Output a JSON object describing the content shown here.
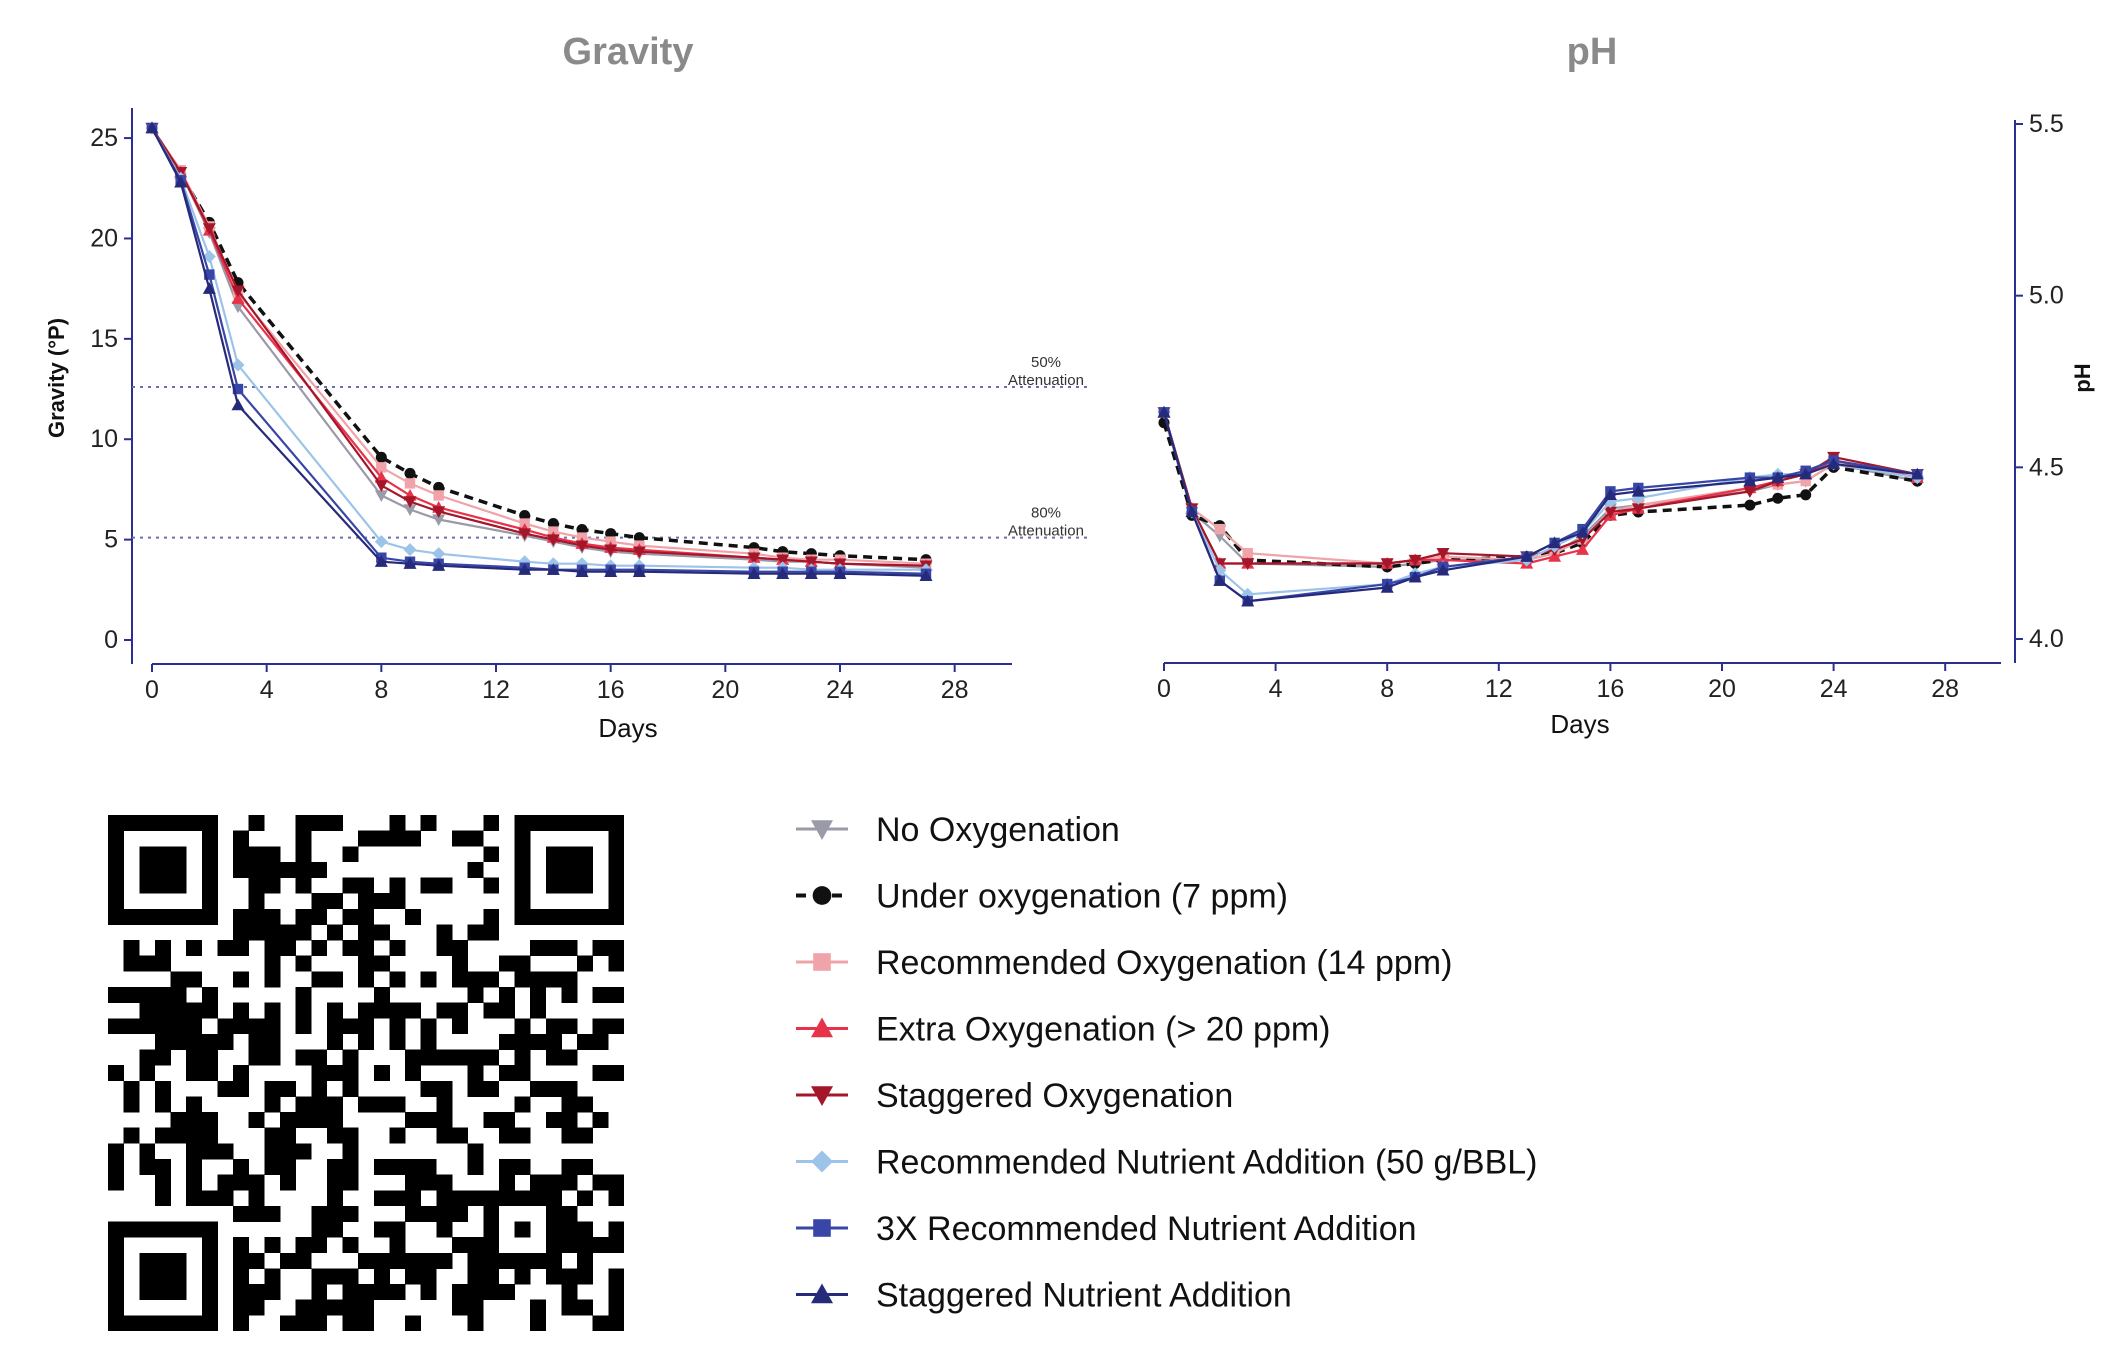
{
  "chart_data": [
    {
      "type": "line",
      "title": "Gravity",
      "xlabel": "Days",
      "ylabel": "Gravity (°P)",
      "xlim": [
        0,
        30
      ],
      "ylim": [
        0,
        26
      ],
      "xticks": [
        "0",
        "4",
        "8",
        "12",
        "16",
        "20",
        "24",
        "28"
      ],
      "yticks": [
        "0",
        "5",
        "10",
        "15",
        "20",
        "25"
      ],
      "reference_lines": [
        {
          "y": 12.6,
          "label_line1": "50%",
          "label_line2": "Attenuation"
        },
        {
          "y": 5.1,
          "label_line1": "80%",
          "label_line2": "Attenuation"
        }
      ],
      "series": [
        {
          "name": "No Oxygenation",
          "x": [
            0,
            1,
            2,
            3,
            8,
            9,
            10,
            13,
            14,
            15,
            16,
            17,
            21,
            22,
            23,
            24,
            27
          ],
          "values": [
            25.5,
            23.3,
            20.3,
            16.6,
            7.2,
            6.5,
            6.0,
            5.2,
            4.9,
            4.6,
            4.4,
            4.3,
            4.0,
            3.9,
            3.9,
            3.8,
            3.6
          ]
        },
        {
          "name": "Under oxygenation (7 ppm)",
          "x": [
            0,
            1,
            2,
            3,
            8,
            9,
            10,
            13,
            14,
            15,
            16,
            17,
            21,
            22,
            23,
            24,
            27
          ],
          "values": [
            25.5,
            23.2,
            20.8,
            17.8,
            9.1,
            8.3,
            7.6,
            6.2,
            5.8,
            5.5,
            5.3,
            5.1,
            4.6,
            4.4,
            4.3,
            4.2,
            4.0
          ]
        },
        {
          "name": "Recommended Oxygenation (14 ppm)",
          "x": [
            0,
            1,
            2,
            3,
            8,
            9,
            10,
            13,
            14,
            15,
            16,
            17,
            21,
            22,
            23,
            24,
            27
          ],
          "values": [
            25.5,
            23.4,
            20.6,
            17.3,
            8.6,
            7.8,
            7.2,
            5.8,
            5.4,
            5.1,
            4.9,
            4.7,
            4.3,
            4.1,
            4.0,
            4.0,
            3.8
          ]
        },
        {
          "name": "Extra Oxygenation (> 20 ppm)",
          "x": [
            0,
            1,
            2,
            3,
            8,
            9,
            10,
            13,
            14,
            15,
            16,
            17,
            21,
            22,
            23,
            24,
            27
          ],
          "values": [
            25.5,
            23.3,
            20.4,
            17.0,
            8.1,
            7.2,
            6.6,
            5.5,
            5.1,
            4.8,
            4.6,
            4.5,
            4.1,
            4.0,
            3.9,
            3.8,
            3.7
          ]
        },
        {
          "name": "Staggered Oxygenation",
          "x": [
            0,
            1,
            2,
            3,
            8,
            9,
            10,
            13,
            14,
            15,
            16,
            17,
            21,
            22,
            23,
            24,
            27
          ],
          "values": [
            25.5,
            23.3,
            20.5,
            17.4,
            7.7,
            6.9,
            6.4,
            5.3,
            5.0,
            4.7,
            4.5,
            4.4,
            4.1,
            4.0,
            3.9,
            3.8,
            3.7
          ]
        },
        {
          "name": "Recommended Nutrient Addition (50 g/BBL)",
          "x": [
            0,
            1,
            2,
            3,
            8,
            9,
            10,
            13,
            14,
            15,
            16,
            17,
            21,
            22,
            23,
            24,
            27
          ],
          "values": [
            25.5,
            23.0,
            19.1,
            13.7,
            4.9,
            4.5,
            4.3,
            3.9,
            3.8,
            3.8,
            3.7,
            3.7,
            3.6,
            3.6,
            3.5,
            3.5,
            3.5
          ]
        },
        {
          "name": "3X Recommended Nutrient Addition",
          "x": [
            0,
            1,
            2,
            3,
            8,
            9,
            10,
            13,
            14,
            15,
            16,
            17,
            21,
            22,
            23,
            24,
            27
          ],
          "values": [
            25.5,
            22.9,
            18.2,
            12.5,
            4.1,
            3.9,
            3.8,
            3.6,
            3.5,
            3.5,
            3.5,
            3.5,
            3.4,
            3.4,
            3.4,
            3.4,
            3.3
          ]
        },
        {
          "name": "Staggered Nutrient Addition",
          "x": [
            0,
            1,
            2,
            3,
            8,
            9,
            10,
            13,
            14,
            15,
            16,
            17,
            21,
            22,
            23,
            24,
            27
          ],
          "values": [
            25.5,
            22.8,
            17.5,
            11.7,
            3.9,
            3.8,
            3.7,
            3.5,
            3.5,
            3.4,
            3.4,
            3.4,
            3.3,
            3.3,
            3.3,
            3.3,
            3.2
          ]
        }
      ]
    },
    {
      "type": "line",
      "title": "pH",
      "xlabel": "Days",
      "ylabel": "pH",
      "xlim": [
        0,
        30
      ],
      "ylim": [
        4.0,
        5.5
      ],
      "xticks": [
        "0",
        "4",
        "8",
        "12",
        "16",
        "20",
        "24",
        "28"
      ],
      "yticks": [
        "4.0",
        "4.5",
        "5.0",
        "5.5"
      ],
      "series": [
        {
          "name": "No Oxygenation",
          "x": [
            0,
            1,
            2,
            3,
            8,
            9,
            10,
            13,
            14,
            15,
            16,
            17,
            21,
            22,
            23,
            24,
            27
          ],
          "values": [
            4.65,
            4.37,
            4.3,
            4.22,
            4.21,
            4.22,
            4.23,
            4.23,
            4.25,
            4.3,
            4.38,
            4.39,
            4.43,
            4.45,
            4.46,
            4.51,
            4.46
          ]
        },
        {
          "name": "Under oxygenation (7 ppm)",
          "x": [
            0,
            1,
            2,
            3,
            8,
            9,
            10,
            13,
            14,
            15,
            16,
            17,
            21,
            22,
            23,
            24,
            27
          ],
          "values": [
            4.63,
            4.36,
            4.33,
            4.23,
            4.21,
            4.22,
            4.23,
            4.24,
            4.25,
            4.28,
            4.36,
            4.37,
            4.39,
            4.41,
            4.42,
            4.5,
            4.46
          ]
        },
        {
          "name": "Recommended Oxygenation (14 ppm)",
          "x": [
            0,
            1,
            2,
            3,
            8,
            9,
            10,
            13,
            14,
            15,
            16,
            17,
            21,
            22,
            23,
            24,
            27
          ],
          "values": [
            4.66,
            4.38,
            4.32,
            4.25,
            4.22,
            4.23,
            4.24,
            4.23,
            4.25,
            4.29,
            4.37,
            4.39,
            4.44,
            4.45,
            4.46,
            4.51,
            4.47
          ]
        },
        {
          "name": "Extra Oxygenation (> 20 ppm)",
          "x": [
            0,
            1,
            2,
            3,
            8,
            9,
            10,
            13,
            14,
            15,
            16,
            17,
            21,
            22,
            23,
            24,
            27
          ],
          "values": [
            4.66,
            4.38,
            4.22,
            4.22,
            4.22,
            4.23,
            4.23,
            4.22,
            4.24,
            4.26,
            4.36,
            4.38,
            4.44,
            4.46,
            4.48,
            4.52,
            4.47
          ]
        },
        {
          "name": "Staggered Oxygenation",
          "x": [
            0,
            1,
            2,
            3,
            8,
            9,
            10,
            13,
            14,
            15,
            16,
            17,
            21,
            22,
            23,
            24,
            27
          ],
          "values": [
            4.66,
            4.38,
            4.22,
            4.22,
            4.22,
            4.23,
            4.25,
            4.24,
            4.26,
            4.29,
            4.37,
            4.38,
            4.43,
            4.46,
            4.48,
            4.53,
            4.48
          ]
        },
        {
          "name": "Recommended Nutrient Addition (50 g/BBL)",
          "x": [
            0,
            1,
            2,
            3,
            8,
            9,
            10,
            13,
            14,
            15,
            16,
            17,
            21,
            22,
            23,
            24,
            27
          ],
          "values": [
            4.66,
            4.37,
            4.2,
            4.13,
            4.16,
            4.19,
            4.21,
            4.23,
            4.27,
            4.31,
            4.4,
            4.41,
            4.47,
            4.48,
            4.48,
            4.51,
            4.47
          ]
        },
        {
          "name": "3X Recommended Nutrient Addition",
          "x": [
            0,
            1,
            2,
            3,
            8,
            9,
            10,
            13,
            14,
            15,
            16,
            17,
            21,
            22,
            23,
            24,
            27
          ],
          "values": [
            4.66,
            4.37,
            4.17,
            4.11,
            4.16,
            4.18,
            4.21,
            4.24,
            4.28,
            4.32,
            4.43,
            4.44,
            4.47,
            4.47,
            4.49,
            4.52,
            4.48
          ]
        },
        {
          "name": "Staggered Nutrient Addition",
          "x": [
            0,
            1,
            2,
            3,
            8,
            9,
            10,
            13,
            14,
            15,
            16,
            17,
            21,
            22,
            23,
            24,
            27
          ],
          "values": [
            4.66,
            4.37,
            4.17,
            4.11,
            4.15,
            4.18,
            4.2,
            4.24,
            4.28,
            4.31,
            4.42,
            4.43,
            4.46,
            4.47,
            4.48,
            4.51,
            4.48
          ]
        }
      ]
    }
  ],
  "legend": [
    {
      "label": "No Oxygenation",
      "color": "#9a9aa8",
      "marker": "triangle-down",
      "dashed": false
    },
    {
      "label": "Under oxygenation (7 ppm)",
      "color": "#111111",
      "marker": "circle",
      "dashed": true
    },
    {
      "label": "Recommended Oxygenation (14 ppm)",
      "color": "#f0a3a8",
      "marker": "square",
      "dashed": false
    },
    {
      "label": "Extra Oxygenation (> 20 ppm)",
      "color": "#e8324a",
      "marker": "triangle-up",
      "dashed": false
    },
    {
      "label": "Staggered Oxygenation",
      "color": "#a5162a",
      "marker": "triangle-down",
      "dashed": false
    },
    {
      "label": "Recommended Nutrient Addition (50 g/BBL)",
      "color": "#9cc3e8",
      "marker": "diamond",
      "dashed": false
    },
    {
      "label": "3X Recommended Nutrient Addition",
      "color": "#3846a8",
      "marker": "square",
      "dashed": false
    },
    {
      "label": "Staggered Nutrient Addition",
      "color": "#262a7a",
      "marker": "triangle-up",
      "dashed": false
    }
  ],
  "qr_code": {
    "icon": "qr-code-icon"
  }
}
